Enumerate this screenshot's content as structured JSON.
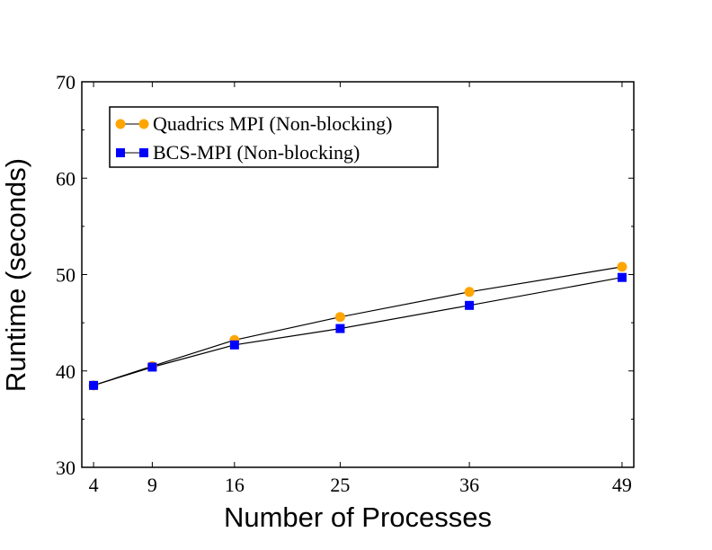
{
  "chart_data": {
    "type": "line",
    "title": "",
    "xlabel": "Number of Processes",
    "ylabel": "Runtime (seconds)",
    "x": [
      4,
      9,
      16,
      25,
      36,
      49
    ],
    "x_tick_labels": [
      "4",
      "9",
      "16",
      "25",
      "36",
      "49"
    ],
    "y_tick_labels": [
      "30",
      "40",
      "50",
      "60",
      "70"
    ],
    "y_ticks": [
      30,
      40,
      50,
      60,
      70
    ],
    "xlim": [
      3,
      50
    ],
    "ylim": [
      30,
      70
    ],
    "grid": false,
    "legend_position": "top-left",
    "series": [
      {
        "name": "Quadrics MPI (Non-blocking)",
        "marker": "circle",
        "color": "#FFA500",
        "line_color": "#000000",
        "values": [
          38.5,
          40.5,
          43.2,
          45.6,
          48.2,
          50.8
        ]
      },
      {
        "name": "BCS-MPI (Non-blocking)",
        "marker": "square",
        "color": "#0000FF",
        "line_color": "#000000",
        "values": [
          38.5,
          40.4,
          42.7,
          44.4,
          46.8,
          49.7
        ]
      }
    ]
  }
}
